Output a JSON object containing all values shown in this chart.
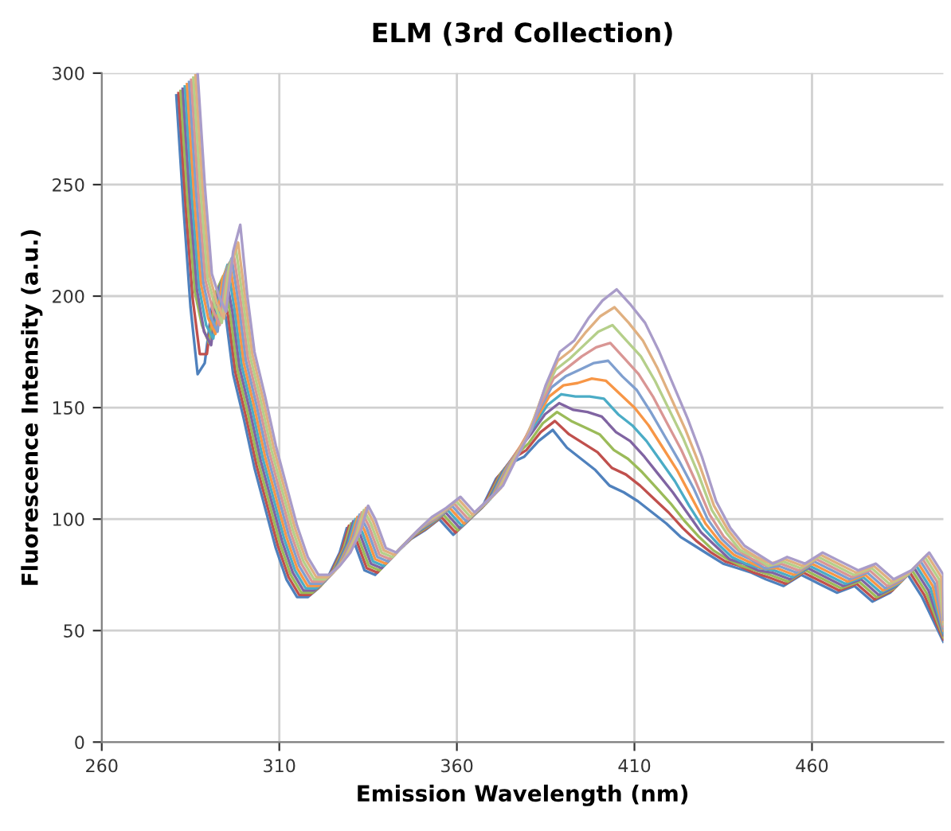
{
  "chart_data": {
    "type": "line",
    "title": "ELM (3rd Collection)",
    "xlabel": "Emission Wavelength (nm)",
    "ylabel": "Fluorescence Intensity (a.u.)",
    "xlim": [
      260,
      497
    ],
    "xticks": [
      260,
      310,
      360,
      410,
      460
    ],
    "ylim": [
      0,
      300
    ],
    "yticks": [
      0,
      50,
      100,
      150,
      200,
      250,
      300
    ],
    "grid": true,
    "legend": false,
    "marker": "none",
    "line_style": "solid",
    "series": [
      {
        "color": "#4f81bd",
        "x": [
          281,
          283,
          285,
          287,
          289,
          291,
          293,
          295,
          297,
          300,
          303,
          306,
          309,
          312,
          315,
          318,
          321,
          324,
          327,
          329,
          331,
          334,
          337,
          340,
          343,
          347,
          351,
          355,
          359,
          363,
          367,
          371,
          375,
          379,
          383,
          387,
          391,
          395,
          399,
          403,
          407,
          411,
          415,
          419,
          423,
          427,
          431,
          435,
          439,
          443,
          447,
          452,
          457,
          462,
          467,
          472,
          477,
          482,
          487,
          491,
          497
        ],
        "values": [
          290,
          240,
          195,
          165,
          170,
          195,
          200,
          190,
          165,
          145,
          123,
          105,
          87,
          73,
          65,
          65,
          69,
          75,
          85,
          96,
          90,
          77,
          75,
          80,
          85,
          91,
          95,
          100,
          93,
          99,
          105,
          118,
          125,
          128,
          135,
          140,
          132,
          127,
          122,
          115,
          112,
          108,
          103,
          98,
          92,
          88,
          84,
          80,
          78,
          76,
          73,
          70,
          75,
          71,
          67,
          70,
          63,
          67,
          75,
          65,
          45
        ]
      },
      {
        "color": "#c0504d",
        "x": [
          281.6,
          283.6,
          285.6,
          287.6,
          289.6,
          291.6,
          293.6,
          295.6,
          297.6,
          300.6,
          303.6,
          306.6,
          309.6,
          312.6,
          315.6,
          318.6,
          321.6,
          324.6,
          327.6,
          329.6,
          331.6,
          334.6,
          337.6,
          340.6,
          343.6,
          347.6,
          351.6,
          355.6,
          359.6,
          363.6,
          367.6,
          371.6,
          375.6,
          379.6,
          383.6,
          387.6,
          391.6,
          395.6,
          399.6,
          403.6,
          407.6,
          411.6,
          415.6,
          419.6,
          423.6,
          427.6,
          431.6,
          435.6,
          439.6,
          443.6,
          447.6,
          452.6,
          457.6,
          462.6,
          467.6,
          472.6,
          477.6,
          482.6,
          487.6,
          491.6,
          497
        ],
        "values": [
          291,
          241,
          199,
          174,
          174,
          199,
          204,
          191,
          166,
          146,
          124,
          106,
          88,
          74,
          66,
          66,
          70,
          76,
          86,
          97,
          91,
          78,
          76,
          81,
          86,
          92,
          96,
          101,
          94,
          100,
          106,
          119,
          127,
          131,
          139,
          144,
          138,
          134,
          130,
          123,
          120,
          115,
          109,
          103,
          96,
          90,
          85,
          81,
          79,
          76,
          74,
          71,
          76,
          72,
          68,
          71,
          64,
          68,
          76,
          66,
          46
        ]
      },
      {
        "color": "#9bbb59",
        "x": [
          282.2,
          284.2,
          286.2,
          288.2,
          290.2,
          292.2,
          294.2,
          296.2,
          298.2,
          301.2,
          304.2,
          307.2,
          310.2,
          313.2,
          316.2,
          319.2,
          322.2,
          325.2,
          328.2,
          330.2,
          332.2,
          335.2,
          338.2,
          341.2,
          344.2,
          348.2,
          352.2,
          356.2,
          360.2,
          364.2,
          368.2,
          372.2,
          376.2,
          380.2,
          384.2,
          388.2,
          392.2,
          396.2,
          400.2,
          404.2,
          408.2,
          412.2,
          416.2,
          420.2,
          424.2,
          428.2,
          432.2,
          436.2,
          440.2,
          444.2,
          448.2,
          453.2,
          458.2,
          463.2,
          468.2,
          473.2,
          478.2,
          483.2,
          488.2,
          492.2,
          497
        ],
        "values": [
          292,
          242,
          202,
          187,
          179,
          202,
          209,
          192,
          167,
          147,
          125,
          107,
          89,
          75,
          67,
          67,
          71,
          77,
          87,
          98,
          92,
          79,
          77,
          82,
          87,
          93,
          97,
          102,
          95,
          101,
          107,
          120,
          128,
          134,
          143,
          148,
          144,
          141,
          138,
          131,
          127,
          121,
          114,
          107,
          99,
          92,
          86,
          82,
          79,
          77,
          75,
          72,
          77,
          73,
          69,
          72,
          65,
          69,
          77,
          67,
          47
        ]
      },
      {
        "color": "#8064a2",
        "x": [
          282.8,
          284.8,
          286.8,
          288.8,
          290.8,
          292.8,
          294.8,
          296.8,
          298.8,
          301.8,
          304.8,
          307.8,
          310.8,
          313.8,
          316.8,
          319.8,
          322.8,
          325.8,
          328.8,
          330.8,
          332.8,
          335.8,
          338.8,
          341.8,
          344.8,
          348.8,
          352.8,
          356.8,
          360.8,
          364.8,
          368.8,
          372.8,
          376.8,
          380.8,
          384.8,
          388.8,
          392.8,
          396.8,
          400.8,
          404.8,
          408.8,
          412.8,
          416.8,
          420.8,
          424.8,
          428.8,
          432.8,
          436.8,
          440.8,
          444.8,
          448.8,
          453.8,
          458.8,
          463.8,
          468.8,
          473.8,
          478.8,
          483.8,
          488.8,
          492.8,
          497
        ],
        "values": [
          293,
          243,
          203,
          184,
          178,
          203,
          210,
          193,
          168,
          148,
          126,
          108,
          90,
          76,
          68,
          68,
          72,
          78,
          88,
          99,
          93,
          80,
          78,
          83,
          88,
          94,
          98,
          103,
          96,
          102,
          108,
          121,
          130,
          138,
          147,
          152,
          149,
          148,
          146,
          139,
          135,
          128,
          120,
          112,
          103,
          94,
          88,
          82,
          80,
          77,
          76,
          73,
          78,
          74,
          70,
          73,
          66,
          70,
          78,
          68,
          48
        ]
      },
      {
        "color": "#4bacc6",
        "x": [
          283.4,
          285.4,
          287.4,
          289.4,
          291.4,
          293.4,
          295.4,
          297.4,
          299.4,
          302.4,
          305.4,
          308.4,
          311.4,
          314.4,
          317.4,
          320.4,
          323.4,
          326.4,
          329.4,
          331.4,
          333.4,
          336.4,
          339.4,
          342.4,
          345.4,
          349.4,
          353.4,
          357.4,
          361.4,
          365.4,
          369.4,
          373.4,
          377.4,
          381.4,
          385.4,
          389.4,
          393.4,
          397.4,
          401.4,
          405.4,
          409.4,
          413.4,
          417.4,
          421.4,
          425.4,
          429.4,
          433.4,
          437.4,
          441.4,
          445.4,
          449.4,
          454.4,
          459.4,
          464.4,
          469.4,
          474.4,
          479.4,
          484.4,
          489.4,
          493.4,
          497
        ],
        "values": [
          294,
          244,
          204,
          187,
          181,
          204,
          214,
          194,
          169,
          149,
          127,
          109,
          91,
          77,
          69,
          69,
          73,
          79,
          89,
          100,
          94,
          81,
          79,
          84,
          89,
          95,
          99,
          104,
          97,
          103,
          109,
          122,
          131,
          141,
          151,
          156,
          155,
          155,
          154,
          147,
          142,
          135,
          126,
          117,
          106,
          96,
          89,
          83,
          80,
          78,
          77,
          74,
          79,
          75,
          71,
          74,
          67,
          71,
          79,
          69,
          49
        ]
      },
      {
        "color": "#f79646",
        "x": [
          284,
          286,
          288,
          290,
          292,
          294,
          296,
          298,
          300,
          303,
          306,
          309,
          312,
          315,
          318,
          321,
          324,
          327,
          330,
          332,
          334,
          337,
          340,
          343,
          346,
          350,
          354,
          358,
          362,
          366,
          370,
          374,
          378,
          382,
          386,
          390,
          394,
          398,
          402,
          406,
          410,
          414,
          418,
          422,
          426,
          430,
          434,
          438,
          442,
          446,
          450,
          455,
          460,
          465,
          470,
          475,
          480,
          485,
          490,
          494,
          497
        ],
        "values": [
          295,
          245,
          205,
          190,
          183,
          208,
          215,
          195,
          170,
          150,
          128,
          110,
          92,
          78,
          70,
          70,
          74,
          80,
          90,
          101,
          95,
          82,
          80,
          85,
          90,
          96,
          100,
          105,
          98,
          104,
          110,
          123,
          133,
          144,
          155,
          160,
          161,
          163,
          162,
          156,
          150,
          142,
          132,
          122,
          110,
          98,
          90,
          84,
          81,
          78,
          78,
          75,
          80,
          76,
          72,
          75,
          68,
          72,
          80,
          70,
          50
        ]
      },
      {
        "color": "#7f9fcf",
        "x": [
          284.6,
          286.6,
          288.6,
          290.6,
          292.6,
          294.6,
          296.6,
          298.6,
          300.6,
          303.6,
          306.6,
          309.6,
          312.6,
          315.6,
          318.6,
          321.6,
          324.6,
          327.6,
          330.6,
          332.6,
          334.6,
          337.6,
          340.6,
          343.6,
          346.6,
          350.6,
          354.6,
          358.6,
          362.6,
          366.6,
          370.6,
          374.6,
          378.6,
          382.6,
          386.6,
          390.6,
          394.6,
          398.6,
          402.6,
          406.6,
          410.6,
          414.6,
          418.6,
          422.6,
          426.6,
          430.6,
          434.6,
          438.6,
          442.6,
          446.6,
          450.6,
          455.6,
          460.6,
          465.6,
          470.6,
          475.6,
          480.6,
          485.6,
          490.6,
          494.6,
          497
        ],
        "values": [
          296,
          246,
          206,
          191,
          184,
          209,
          217,
          196,
          171,
          151,
          129,
          111,
          93,
          79,
          71,
          71,
          75,
          81,
          91,
          102,
          96,
          83,
          81,
          86,
          91,
          97,
          101,
          106,
          99,
          105,
          111,
          124,
          134,
          147,
          159,
          164,
          167,
          170,
          171,
          164,
          158,
          148,
          137,
          126,
          114,
          100,
          91,
          85,
          82,
          78,
          79,
          76,
          81,
          77,
          73,
          76,
          69,
          73,
          81,
          71,
          51
        ]
      },
      {
        "color": "#d99694",
        "x": [
          285.2,
          287.2,
          289.2,
          291.2,
          293.2,
          295.2,
          297.2,
          299.2,
          301.2,
          304.2,
          307.2,
          310.2,
          313.2,
          316.2,
          319.2,
          322.2,
          325.2,
          328.2,
          331.2,
          333.2,
          335.2,
          338.2,
          341.2,
          344.2,
          347.2,
          351.2,
          355.2,
          359.2,
          363.2,
          367.2,
          371.2,
          375.2,
          379.2,
          383.2,
          387.2,
          391.2,
          395.2,
          399.2,
          403.2,
          407.2,
          411.2,
          415.2,
          419.2,
          423.2,
          427.2,
          431.2,
          435.2,
          439.2,
          443.2,
          447.2,
          451.2,
          456.2,
          461.2,
          466.2,
          471.2,
          476.2,
          481.2,
          486.2,
          491.2,
          495.2,
          497
        ],
        "values": [
          297,
          247,
          207,
          194,
          187,
          210,
          218,
          197,
          172,
          152,
          130,
          112,
          94,
          80,
          72,
          72,
          76,
          82,
          92,
          103,
          97,
          84,
          82,
          87,
          92,
          98,
          102,
          107,
          100,
          106,
          112,
          125,
          136,
          150,
          163,
          168,
          173,
          177,
          179,
          172,
          165,
          155,
          143,
          131,
          117,
          102,
          92,
          86,
          82,
          79,
          80,
          77,
          82,
          78,
          74,
          77,
          70,
          74,
          82,
          72,
          52
        ]
      },
      {
        "color": "#b5cf8a",
        "x": [
          285.8,
          287.8,
          289.8,
          291.8,
          293.8,
          295.8,
          297.8,
          299.8,
          301.8,
          304.8,
          307.8,
          310.8,
          313.8,
          316.8,
          319.8,
          322.8,
          325.8,
          328.8,
          331.8,
          333.8,
          335.8,
          338.8,
          341.8,
          344.8,
          347.8,
          351.8,
          355.8,
          359.8,
          363.8,
          367.8,
          371.8,
          375.8,
          379.8,
          383.8,
          387.8,
          391.8,
          395.8,
          399.8,
          403.8,
          407.8,
          411.8,
          415.8,
          419.8,
          423.8,
          427.8,
          431.8,
          435.8,
          439.8,
          443.8,
          447.8,
          451.8,
          456.8,
          461.8,
          466.8,
          471.8,
          476.8,
          481.8,
          486.8,
          491.8,
          495.8,
          497
        ],
        "values": [
          298,
          248,
          208,
          196,
          188,
          213,
          221,
          198,
          173,
          153,
          131,
          113,
          95,
          81,
          73,
          73,
          77,
          83,
          93,
          104,
          98,
          85,
          83,
          88,
          93,
          99,
          103,
          108,
          101,
          107,
          113,
          126,
          137,
          154,
          167,
          172,
          178,
          184,
          187,
          180,
          173,
          162,
          149,
          136,
          121,
          104,
          94,
          86,
          83,
          79,
          81,
          78,
          83,
          79,
          75,
          78,
          71,
          75,
          83,
          73,
          53
        ]
      },
      {
        "color": "#e0b080",
        "x": [
          286.4,
          288.4,
          290.4,
          292.4,
          294.4,
          296.4,
          298.4,
          300.4,
          302.4,
          305.4,
          308.4,
          311.4,
          314.4,
          317.4,
          320.4,
          323.4,
          326.4,
          329.4,
          332.4,
          334.4,
          336.4,
          339.4,
          342.4,
          345.4,
          348.4,
          352.4,
          356.4,
          360.4,
          364.4,
          368.4,
          372.4,
          376.4,
          380.4,
          384.4,
          388.4,
          392.4,
          396.4,
          400.4,
          404.4,
          408.4,
          412.4,
          416.4,
          420.4,
          424.4,
          428.4,
          432.4,
          436.4,
          440.4,
          444.4,
          448.4,
          452.4,
          457.4,
          462.4,
          467.4,
          472.4,
          477.4,
          482.4,
          487.4,
          492.4,
          496.4,
          497
        ],
        "values": [
          299,
          249,
          209,
          197,
          190,
          214,
          224,
          199,
          174,
          154,
          132,
          114,
          96,
          82,
          74,
          74,
          78,
          84,
          94,
          105,
          99,
          86,
          84,
          89,
          94,
          100,
          104,
          109,
          102,
          108,
          114,
          127,
          139,
          157,
          171,
          176,
          184,
          191,
          195,
          188,
          180,
          168,
          154,
          140,
          124,
          106,
          95,
          87,
          83,
          80,
          82,
          79,
          84,
          80,
          76,
          79,
          72,
          76,
          84,
          74,
          54
        ]
      },
      {
        "color": "#a99cc9",
        "x": [
          287,
          289,
          291,
          293,
          295,
          297,
          299,
          301,
          303,
          306,
          309,
          312,
          315,
          318,
          321,
          324,
          327,
          330,
          333,
          335,
          337,
          340,
          343,
          346,
          349,
          353,
          357,
          361,
          365,
          369,
          373,
          377,
          381,
          385,
          389,
          393,
          397,
          401,
          405,
          409,
          413,
          417,
          421,
          425,
          429,
          433,
          437,
          441,
          445,
          449,
          453,
          458,
          463,
          468,
          473,
          478,
          483,
          488,
          493,
          497,
          497
        ],
        "values": [
          300,
          250,
          210,
          200,
          193,
          220,
          232,
          200,
          175,
          155,
          133,
          115,
          97,
          83,
          75,
          75,
          79,
          85,
          95,
          106,
          100,
          87,
          85,
          90,
          95,
          101,
          105,
          110,
          103,
          109,
          115,
          128,
          140,
          160,
          175,
          180,
          190,
          198,
          203,
          196,
          188,
          175,
          160,
          145,
          128,
          108,
          96,
          88,
          84,
          80,
          83,
          80,
          85,
          81,
          77,
          80,
          73,
          77,
          85,
          75,
          55
        ]
      }
    ]
  }
}
